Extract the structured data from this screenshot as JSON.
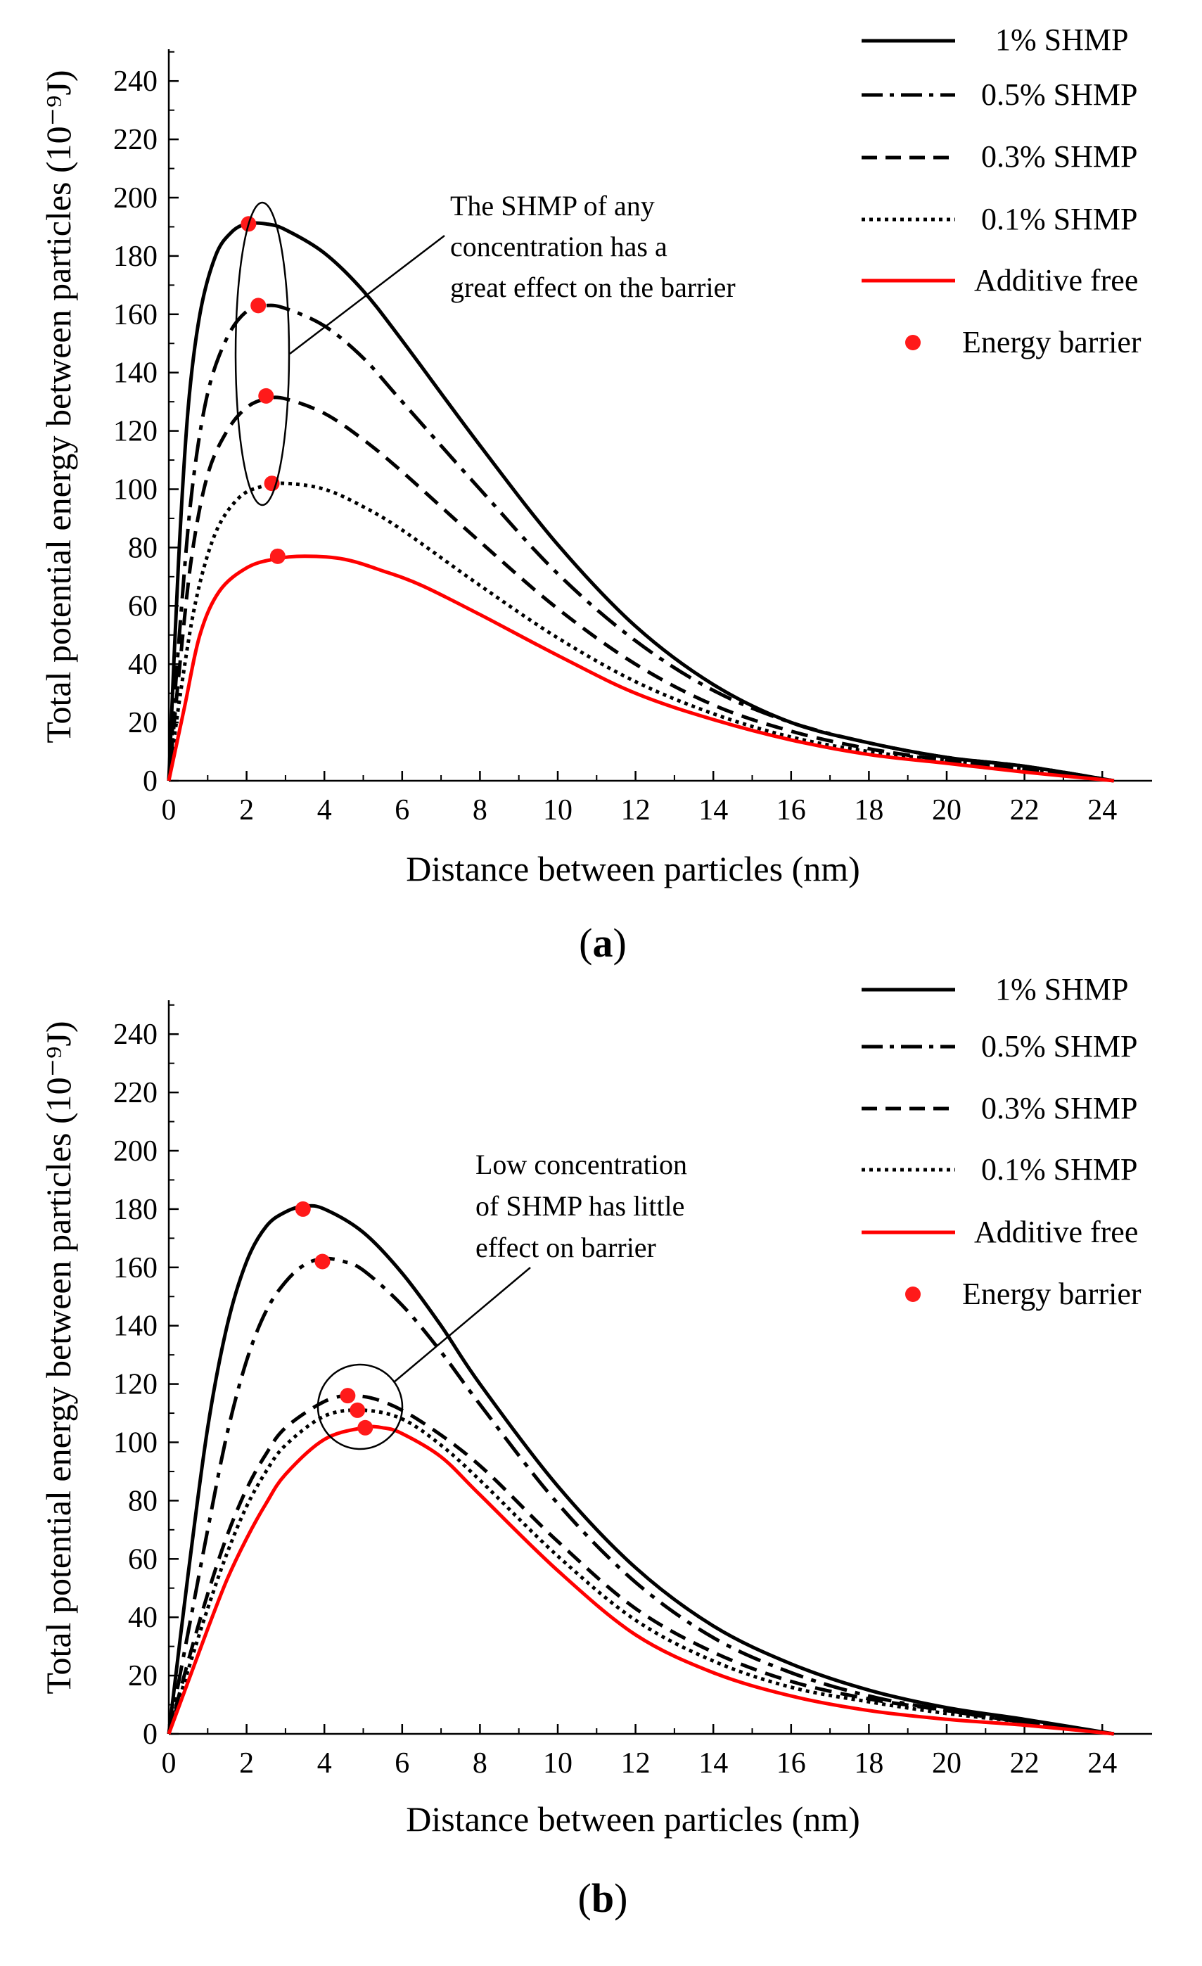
{
  "colors": {
    "black": "#000000",
    "red": "#ff0000",
    "marker": "#ff1a1a"
  },
  "chart_data": [
    {
      "type": "line",
      "panel_label": "a",
      "xlabel": "Distance between particles (nm)",
      "ylabel": "Total potential energy between particles (10⁻⁹J)",
      "xlim": [
        0,
        25
      ],
      "ylim": [
        0,
        250
      ],
      "xticks": [
        "0",
        "2",
        "4",
        "6",
        "8",
        "10",
        "12",
        "14",
        "16",
        "18",
        "20",
        "22",
        "24"
      ],
      "yticks": [
        "0",
        "20",
        "40",
        "60",
        "80",
        "100",
        "120",
        "140",
        "160",
        "180",
        "200",
        "220",
        "240"
      ],
      "legend_position": "top-right",
      "series": [
        {
          "name": "1% SHMP",
          "style": "solid",
          "color": "#000000",
          "x": [
            0,
            0.25,
            0.5,
            0.8,
            1.2,
            1.6,
            2.0,
            2.5,
            3.0,
            4.0,
            5.0,
            6.0,
            8.0,
            10.0,
            12.0,
            14.0,
            16.0,
            18.0,
            20.0,
            22.0,
            24.3
          ],
          "y": [
            0,
            75,
            128,
            160,
            180,
            188,
            191,
            191,
            189,
            181,
            168,
            151,
            115,
            81,
            53,
            33,
            20,
            13,
            8,
            5,
            0
          ]
        },
        {
          "name": "0.5% SHMP",
          "style": "dashdot",
          "color": "#000000",
          "x": [
            0,
            0.3,
            0.6,
            1.0,
            1.5,
            2.0,
            2.5,
            3.0,
            4.0,
            5.0,
            6.0,
            8.0,
            10.0,
            12.0,
            14.0,
            16.0,
            18.0,
            20.0,
            22.0,
            24.3
          ],
          "y": [
            0,
            55,
            100,
            133,
            152,
            161,
            163,
            162,
            156,
            145,
            130,
            100,
            71,
            48,
            31,
            20,
            13,
            8,
            5,
            0
          ]
        },
        {
          "name": "0.3% SHMP",
          "style": "dash",
          "color": "#000000",
          "x": [
            0,
            0.3,
            0.6,
            1.0,
            1.5,
            2.0,
            2.5,
            3.0,
            4.0,
            5.0,
            6.0,
            8.0,
            10.0,
            12.0,
            14.0,
            16.0,
            18.0,
            20.0,
            22.0,
            24.3
          ],
          "y": [
            0,
            42,
            78,
            105,
            120,
            128,
            131,
            131,
            126,
            117,
            106,
            82,
            59,
            40,
            26,
            17,
            11,
            7,
            4,
            0
          ]
        },
        {
          "name": "0.1% SHMP",
          "style": "dot",
          "color": "#000000",
          "x": [
            0,
            0.3,
            0.7,
            1.2,
            1.8,
            2.4,
            3.0,
            4.0,
            5.0,
            6.0,
            8.0,
            10.0,
            12.0,
            14.0,
            16.0,
            18.0,
            20.0,
            22.0,
            24.3
          ],
          "y": [
            0,
            30,
            62,
            85,
            97,
            101,
            102,
            100,
            94,
            86,
            67,
            49,
            34,
            23,
            15,
            10,
            7,
            4,
            0
          ]
        },
        {
          "name": "Additive free",
          "style": "solid",
          "color": "#ff0000",
          "x": [
            0,
            0.4,
            0.8,
            1.3,
            2.0,
            2.7,
            3.5,
            4.5,
            5.5,
            6.5,
            8.0,
            10.0,
            12.0,
            14.0,
            16.0,
            18.0,
            20.0,
            22.0,
            24.3
          ],
          "y": [
            0,
            25,
            50,
            65,
            73,
            76,
            77,
            76,
            72,
            67,
            57,
            43,
            30,
            21,
            14,
            9,
            6,
            3,
            0
          ]
        }
      ],
      "energy_barrier": {
        "name": "Energy barrier",
        "x": [
          2.05,
          2.3,
          2.5,
          2.65,
          2.8
        ],
        "y": [
          191,
          163,
          132,
          102,
          77
        ]
      },
      "annotation": {
        "lines": [
          "The SHMP of any",
          "concentration has a",
          "great effect on the barrier"
        ]
      }
    },
    {
      "type": "line",
      "panel_label": "b",
      "xlabel": "Distance between particles (nm)",
      "ylabel": "Total potential energy between particles (10⁻⁹J)",
      "xlim": [
        0,
        25
      ],
      "ylim": [
        0,
        250
      ],
      "xticks": [
        "0",
        "2",
        "4",
        "6",
        "8",
        "10",
        "12",
        "14",
        "16",
        "18",
        "20",
        "22",
        "24"
      ],
      "yticks": [
        "0",
        "20",
        "40",
        "60",
        "80",
        "100",
        "120",
        "140",
        "160",
        "180",
        "200",
        "220",
        "240"
      ],
      "legend_position": "top-right",
      "series": [
        {
          "name": "1% SHMP",
          "style": "solid",
          "color": "#000000",
          "x": [
            0,
            0.5,
            1.0,
            1.5,
            2.0,
            2.5,
            3.0,
            3.5,
            4.0,
            5.0,
            6.0,
            7.0,
            8.0,
            10.0,
            12.0,
            14.0,
            16.0,
            18.0,
            20.0,
            22.0,
            24.3
          ],
          "y": [
            0,
            55,
            105,
            140,
            162,
            174,
            179,
            181,
            180,
            172,
            158,
            140,
            120,
            85,
            57,
            37,
            24,
            15,
            9,
            5,
            0
          ]
        },
        {
          "name": "0.5% SHMP",
          "style": "dashdot",
          "color": "#000000",
          "x": [
            0,
            0.5,
            1.0,
            1.5,
            2.0,
            2.5,
            3.0,
            3.5,
            4.0,
            4.5,
            5.0,
            6.0,
            7.0,
            8.0,
            10.0,
            12.0,
            14.0,
            16.0,
            18.0,
            20.0,
            22.0,
            24.3
          ],
          "y": [
            0,
            35,
            70,
            103,
            128,
            145,
            155,
            161,
            163,
            162,
            159,
            147,
            131,
            113,
            79,
            52,
            33,
            21,
            13,
            8,
            4,
            0
          ]
        },
        {
          "name": "0.3% SHMP",
          "style": "dash",
          "color": "#000000",
          "x": [
            0,
            0.5,
            1.0,
            1.5,
            2.0,
            2.5,
            3.0,
            4.0,
            4.7,
            5.5,
            6.5,
            8.0,
            10.0,
            12.0,
            14.0,
            16.0,
            18.0,
            20.0,
            22.0,
            24.3
          ],
          "y": [
            0,
            25,
            48,
            68,
            84,
            96,
            105,
            114,
            116,
            114,
            107,
            92,
            66,
            43,
            28,
            18,
            12,
            8,
            4,
            0
          ]
        },
        {
          "name": "0.1% SHMP",
          "style": "dot",
          "color": "#000000",
          "x": [
            0,
            0.5,
            1.0,
            1.5,
            2.0,
            2.5,
            3.0,
            4.0,
            5.0,
            6.0,
            7.0,
            8.0,
            10.0,
            12.0,
            14.0,
            16.0,
            18.0,
            20.0,
            22.0,
            24.3
          ],
          "y": [
            0,
            22,
            43,
            62,
            78,
            90,
            99,
            109,
            111,
            108,
            99,
            87,
            61,
            39,
            25,
            16,
            11,
            7,
            4,
            0
          ]
        },
        {
          "name": "Additive free",
          "style": "solid",
          "color": "#ff0000",
          "x": [
            0,
            0.5,
            1.0,
            1.5,
            2.0,
            2.5,
            3.0,
            4.0,
            5.0,
            5.5,
            6.0,
            7.0,
            8.0,
            10.0,
            12.0,
            14.0,
            16.0,
            18.0,
            20.0,
            22.0,
            24.3
          ],
          "y": [
            0,
            18,
            36,
            53,
            67,
            79,
            89,
            101,
            105,
            105,
            103,
            95,
            82,
            56,
            34,
            21,
            13,
            8,
            5,
            3,
            0
          ]
        }
      ],
      "energy_barrier": {
        "name": "Energy barrier",
        "x": [
          3.45,
          3.95,
          4.6,
          4.85,
          5.05
        ],
        "y": [
          180,
          162,
          116,
          111,
          105
        ]
      },
      "annotation": {
        "lines": [
          "Low concentration",
          "of SHMP has little",
          "effect on barrier"
        ]
      }
    }
  ]
}
